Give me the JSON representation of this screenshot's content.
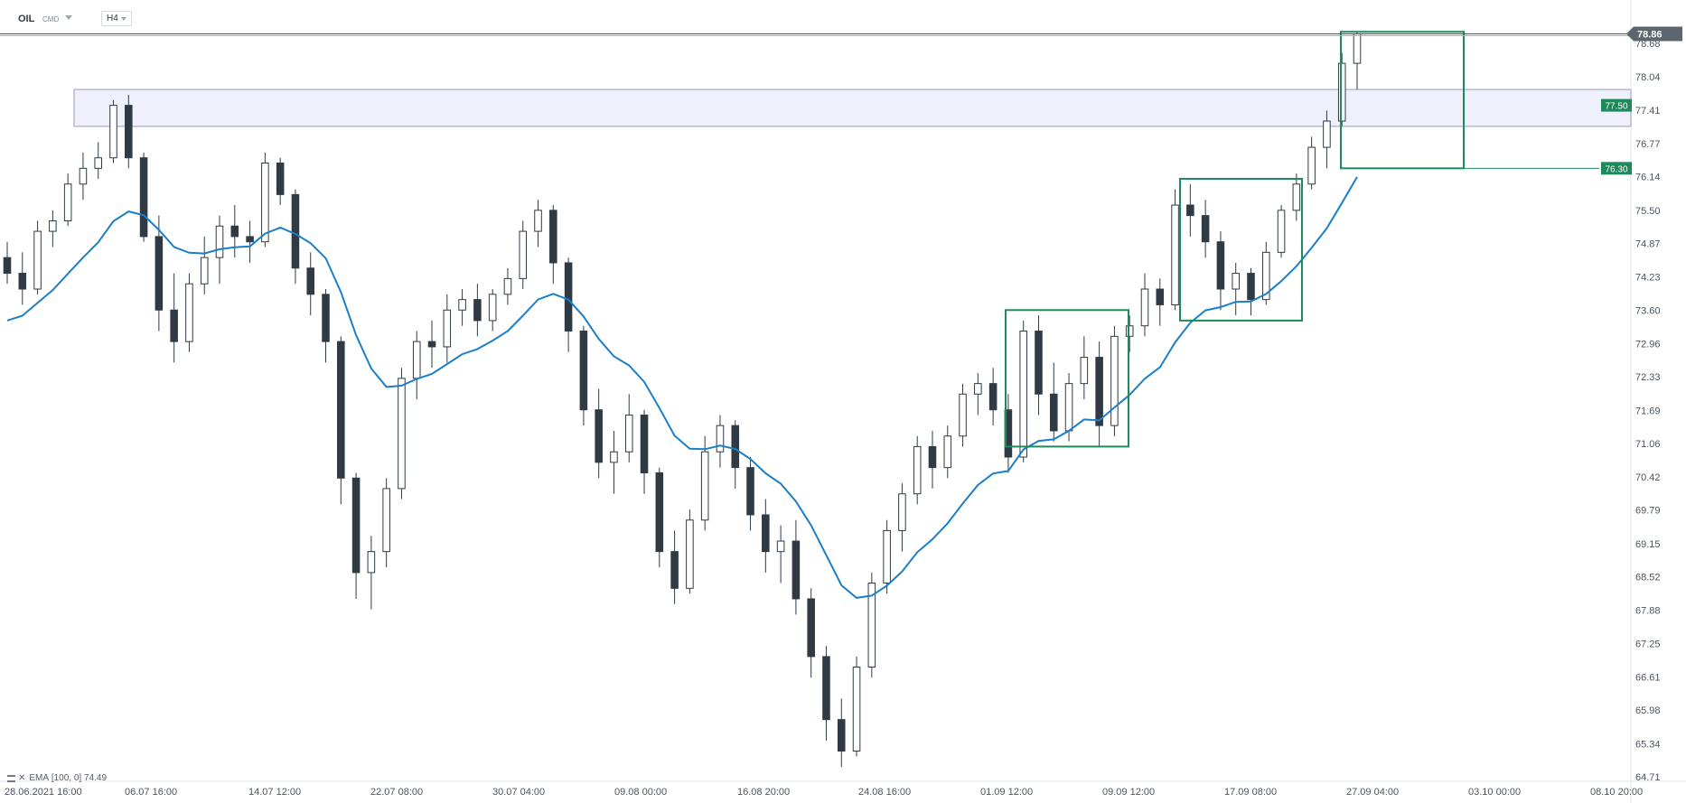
{
  "header": {
    "symbol": "OIL",
    "market": "CMD",
    "timeframe": "H4"
  },
  "indicator": {
    "name": "EMA",
    "params": "[100, 0]",
    "value": "74.49",
    "color": "#1a7fc9"
  },
  "colors": {
    "candle": "#2f3a44",
    "accent_green": "#1e8a5c",
    "zone_fill": "#eef0fb",
    "zone_stroke": "#b6b4e2",
    "price_label_bg": "#5d6670"
  },
  "chart_data": {
    "type": "candlestick",
    "timeframe": "H4",
    "ylim": [
      64.71,
      79.0
    ],
    "y_ticks": [
      "78.68",
      "78.04",
      "77.41",
      "76.77",
      "76.14",
      "75.50",
      "74.87",
      "74.23",
      "73.60",
      "72.96",
      "72.33",
      "71.69",
      "71.06",
      "70.42",
      "69.79",
      "69.15",
      "68.52",
      "67.88",
      "67.25",
      "66.61",
      "65.98",
      "65.34",
      "64.71"
    ],
    "x_ticks": [
      "28.06.2021  16:00",
      "06.07  16:00",
      "14.07  12:00",
      "22.07  08:00",
      "30.07  04:00",
      "09.08  00:00",
      "16.08  20:00",
      "24.08  16:00",
      "01.09  12:00",
      "09.09  12:00",
      "17.09  08:00",
      "27.09  04:00",
      "03.10  00:00",
      "08.10  20:00"
    ],
    "last_price": "78.86",
    "level_labels": [
      {
        "label": "77.50",
        "value": 77.5
      },
      {
        "label": "76.30",
        "value": 76.3
      }
    ],
    "resistance_zone": {
      "from": 77.1,
      "to": 77.8
    },
    "consolidation_boxes": [
      {
        "start": "01.09",
        "end": "09.09",
        "low": 71.0,
        "high": 73.6
      },
      {
        "start": "13.09",
        "end": "24.09",
        "low": 73.4,
        "high": 76.1
      },
      {
        "start": "24.09",
        "end": "29.09",
        "low": 76.3,
        "high": 78.9
      }
    ],
    "ohlc_approx": [
      [
        74.6,
        74.9,
        74.1,
        74.3
      ],
      [
        74.3,
        74.7,
        73.7,
        74.0
      ],
      [
        74.0,
        75.3,
        73.9,
        75.1
      ],
      [
        75.1,
        75.5,
        74.8,
        75.3
      ],
      [
        75.3,
        76.2,
        75.2,
        76.0
      ],
      [
        76.0,
        76.6,
        75.7,
        76.3
      ],
      [
        76.3,
        76.8,
        76.1,
        76.5
      ],
      [
        76.5,
        77.6,
        76.4,
        77.5
      ],
      [
        77.5,
        77.7,
        76.3,
        76.5
      ],
      [
        76.5,
        76.6,
        74.9,
        75.0
      ],
      [
        75.0,
        75.4,
        73.2,
        73.6
      ],
      [
        73.6,
        74.3,
        72.6,
        73.0
      ],
      [
        73.0,
        74.3,
        72.8,
        74.1
      ],
      [
        74.1,
        75.0,
        73.9,
        74.6
      ],
      [
        74.6,
        75.4,
        74.1,
        75.2
      ],
      [
        75.2,
        75.6,
        74.6,
        75.0
      ],
      [
        75.0,
        75.3,
        74.5,
        74.9
      ],
      [
        74.9,
        76.6,
        74.8,
        76.4
      ],
      [
        76.4,
        76.5,
        75.6,
        75.8
      ],
      [
        75.8,
        75.9,
        74.1,
        74.4
      ],
      [
        74.4,
        74.7,
        73.5,
        73.9
      ],
      [
        73.9,
        74.0,
        72.6,
        73.0
      ],
      [
        73.0,
        73.1,
        69.9,
        70.4
      ],
      [
        70.4,
        70.5,
        68.1,
        68.6
      ],
      [
        68.6,
        69.3,
        67.9,
        69.0
      ],
      [
        69.0,
        70.4,
        68.7,
        70.2
      ],
      [
        70.2,
        72.5,
        70.0,
        72.3
      ],
      [
        72.3,
        73.2,
        71.9,
        73.0
      ],
      [
        73.0,
        73.4,
        72.5,
        72.9
      ],
      [
        72.9,
        73.9,
        72.6,
        73.6
      ],
      [
        73.6,
        74.0,
        73.3,
        73.8
      ],
      [
        73.8,
        74.1,
        73.1,
        73.4
      ],
      [
        73.4,
        74.0,
        73.2,
        73.9
      ],
      [
        73.9,
        74.4,
        73.7,
        74.2
      ],
      [
        74.2,
        75.3,
        74.0,
        75.1
      ],
      [
        75.1,
        75.7,
        74.8,
        75.5
      ],
      [
        75.5,
        75.6,
        74.1,
        74.5
      ],
      [
        74.5,
        74.6,
        72.8,
        73.2
      ],
      [
        73.2,
        73.3,
        71.4,
        71.7
      ],
      [
        71.7,
        72.1,
        70.4,
        70.7
      ],
      [
        70.7,
        71.3,
        70.1,
        70.9
      ],
      [
        70.9,
        72.0,
        70.7,
        71.6
      ],
      [
        71.6,
        71.7,
        70.1,
        70.5
      ],
      [
        70.5,
        70.6,
        68.7,
        69.0
      ],
      [
        69.0,
        69.4,
        68.0,
        68.3
      ],
      [
        68.3,
        69.8,
        68.2,
        69.6
      ],
      [
        69.6,
        71.2,
        69.4,
        70.9
      ],
      [
        70.9,
        71.6,
        70.6,
        71.4
      ],
      [
        71.4,
        71.5,
        70.2,
        70.6
      ],
      [
        70.6,
        70.8,
        69.4,
        69.7
      ],
      [
        69.7,
        70.0,
        68.6,
        69.0
      ],
      [
        69.0,
        69.5,
        68.4,
        69.2
      ],
      [
        69.2,
        69.6,
        67.8,
        68.1
      ],
      [
        68.1,
        68.3,
        66.6,
        67.0
      ],
      [
        67.0,
        67.2,
        65.4,
        65.8
      ],
      [
        65.8,
        66.2,
        64.9,
        65.2
      ],
      [
        65.2,
        67.0,
        65.1,
        66.8
      ],
      [
        66.8,
        68.6,
        66.6,
        68.4
      ],
      [
        68.4,
        69.6,
        68.2,
        69.4
      ],
      [
        69.4,
        70.3,
        69.0,
        70.1
      ],
      [
        70.1,
        71.2,
        69.9,
        71.0
      ],
      [
        71.0,
        71.3,
        70.2,
        70.6
      ],
      [
        70.6,
        71.4,
        70.4,
        71.2
      ],
      [
        71.2,
        72.2,
        71.0,
        72.0
      ],
      [
        72.0,
        72.4,
        71.6,
        72.2
      ],
      [
        72.2,
        72.5,
        71.4,
        71.7
      ],
      [
        71.7,
        72.0,
        70.5,
        70.8
      ],
      [
        70.8,
        73.4,
        70.7,
        73.2
      ],
      [
        73.2,
        73.5,
        71.6,
        72.0
      ],
      [
        72.0,
        72.6,
        71.1,
        71.3
      ],
      [
        71.3,
        72.4,
        71.1,
        72.2
      ],
      [
        72.2,
        73.1,
        71.9,
        72.7
      ],
      [
        72.7,
        73.0,
        71.0,
        71.4
      ],
      [
        71.4,
        73.3,
        71.2,
        73.1
      ],
      [
        73.1,
        73.5,
        72.8,
        73.3
      ],
      [
        73.3,
        74.3,
        73.1,
        74.0
      ],
      [
        74.0,
        74.2,
        73.3,
        73.7
      ],
      [
        73.7,
        75.9,
        73.6,
        75.6
      ],
      [
        75.6,
        76.0,
        75.0,
        75.4
      ],
      [
        75.4,
        75.7,
        74.6,
        74.9
      ],
      [
        74.9,
        75.1,
        73.6,
        74.0
      ],
      [
        74.0,
        74.5,
        73.5,
        74.3
      ],
      [
        74.3,
        74.4,
        73.5,
        73.8
      ],
      [
        73.8,
        74.9,
        73.7,
        74.7
      ],
      [
        74.7,
        75.6,
        74.6,
        75.5
      ],
      [
        75.5,
        76.2,
        75.3,
        76.0
      ],
      [
        76.0,
        76.9,
        75.9,
        76.7
      ],
      [
        76.7,
        77.4,
        76.3,
        77.2
      ],
      [
        77.2,
        78.5,
        77.1,
        78.3
      ],
      [
        78.3,
        78.9,
        77.8,
        78.86
      ]
    ]
  }
}
